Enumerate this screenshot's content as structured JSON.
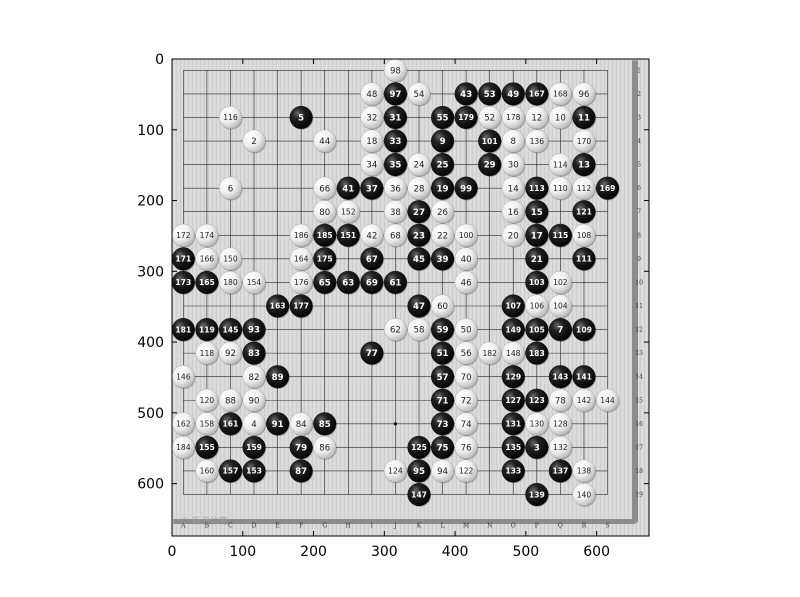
{
  "plot": {
    "xticks": [
      "0",
      "100",
      "200",
      "300",
      "400",
      "500",
      "600"
    ],
    "yticks": [
      "0",
      "100",
      "200",
      "300",
      "400",
      "500",
      "600"
    ],
    "xlim": [
      0,
      674
    ],
    "ylim": [
      674,
      0
    ]
  },
  "board": {
    "size": 19,
    "col_letters": [
      "A",
      "B",
      "C",
      "D",
      "E",
      "F",
      "G",
      "H",
      "I",
      "J",
      "K",
      "L",
      "M",
      "N",
      "O",
      "P",
      "Q",
      "R",
      "S"
    ],
    "row_numbers": [
      "1",
      "2",
      "3",
      "4",
      "5",
      "6",
      "7",
      "8",
      "9",
      "10",
      "11",
      "12",
      "13",
      "14",
      "15",
      "16",
      "17",
      "18",
      "19"
    ],
    "watermark": "© 新浪体育",
    "colors": {
      "board": "#d6d6d6",
      "black_stone": "#141414",
      "white_stone": "#f2f2f2"
    }
  },
  "stones": [
    {
      "n": "98",
      "c": "w",
      "col": 10,
      "row": 1
    },
    {
      "n": "48",
      "c": "w",
      "col": 9,
      "row": 2
    },
    {
      "n": "97",
      "c": "b",
      "col": 10,
      "row": 2
    },
    {
      "n": "54",
      "c": "w",
      "col": 11,
      "row": 2
    },
    {
      "n": "43",
      "c": "b",
      "col": 13,
      "row": 2
    },
    {
      "n": "53",
      "c": "b",
      "col": 14,
      "row": 2
    },
    {
      "n": "49",
      "c": "b",
      "col": 15,
      "row": 2
    },
    {
      "n": "167",
      "c": "b",
      "col": 16,
      "row": 2
    },
    {
      "n": "168",
      "c": "w",
      "col": 17,
      "row": 2
    },
    {
      "n": "96",
      "c": "w",
      "col": 18,
      "row": 2
    },
    {
      "n": "116",
      "c": "w",
      "col": 3,
      "row": 3
    },
    {
      "n": "5",
      "c": "b",
      "col": 6,
      "row": 3
    },
    {
      "n": "32",
      "c": "w",
      "col": 9,
      "row": 3
    },
    {
      "n": "31",
      "c": "b",
      "col": 10,
      "row": 3
    },
    {
      "n": "55",
      "c": "b",
      "col": 12,
      "row": 3
    },
    {
      "n": "179",
      "c": "b",
      "col": 13,
      "row": 3
    },
    {
      "n": "52",
      "c": "w",
      "col": 14,
      "row": 3
    },
    {
      "n": "178",
      "c": "w",
      "col": 15,
      "row": 3
    },
    {
      "n": "12",
      "c": "w",
      "col": 16,
      "row": 3
    },
    {
      "n": "10",
      "c": "w",
      "col": 17,
      "row": 3
    },
    {
      "n": "11",
      "c": "b",
      "col": 18,
      "row": 3
    },
    {
      "n": "2",
      "c": "w",
      "col": 4,
      "row": 4
    },
    {
      "n": "44",
      "c": "w",
      "col": 7,
      "row": 4
    },
    {
      "n": "18",
      "c": "w",
      "col": 9,
      "row": 4
    },
    {
      "n": "33",
      "c": "b",
      "col": 10,
      "row": 4
    },
    {
      "n": "9",
      "c": "b",
      "col": 12,
      "row": 4
    },
    {
      "n": "101",
      "c": "b",
      "col": 14,
      "row": 4
    },
    {
      "n": "8",
      "c": "w",
      "col": 15,
      "row": 4
    },
    {
      "n": "136",
      "c": "w",
      "col": 16,
      "row": 4
    },
    {
      "n": "170",
      "c": "w",
      "col": 18,
      "row": 4
    },
    {
      "n": "34",
      "c": "w",
      "col": 9,
      "row": 5
    },
    {
      "n": "35",
      "c": "b",
      "col": 10,
      "row": 5
    },
    {
      "n": "24",
      "c": "w",
      "col": 11,
      "row": 5
    },
    {
      "n": "25",
      "c": "b",
      "col": 12,
      "row": 5
    },
    {
      "n": "29",
      "c": "b",
      "col": 14,
      "row": 5
    },
    {
      "n": "30",
      "c": "w",
      "col": 15,
      "row": 5
    },
    {
      "n": "114",
      "c": "w",
      "col": 17,
      "row": 5
    },
    {
      "n": "13",
      "c": "b",
      "col": 18,
      "row": 5
    },
    {
      "n": "6",
      "c": "w",
      "col": 3,
      "row": 6
    },
    {
      "n": "66",
      "c": "w",
      "col": 7,
      "row": 6
    },
    {
      "n": "41",
      "c": "b",
      "col": 8,
      "row": 6
    },
    {
      "n": "37",
      "c": "b",
      "col": 9,
      "row": 6
    },
    {
      "n": "36",
      "c": "w",
      "col": 10,
      "row": 6
    },
    {
      "n": "28",
      "c": "w",
      "col": 11,
      "row": 6
    },
    {
      "n": "19",
      "c": "b",
      "col": 12,
      "row": 6
    },
    {
      "n": "99",
      "c": "b",
      "col": 13,
      "row": 6
    },
    {
      "n": "14",
      "c": "w",
      "col": 15,
      "row": 6
    },
    {
      "n": "113",
      "c": "b",
      "col": 16,
      "row": 6
    },
    {
      "n": "110",
      "c": "w",
      "col": 17,
      "row": 6
    },
    {
      "n": "112",
      "c": "w",
      "col": 18,
      "row": 6
    },
    {
      "n": "169",
      "c": "b",
      "col": 19,
      "row": 6
    },
    {
      "n": "80",
      "c": "w",
      "col": 7,
      "row": 7
    },
    {
      "n": "152",
      "c": "w",
      "col": 8,
      "row": 7
    },
    {
      "n": "38",
      "c": "w",
      "col": 10,
      "row": 7
    },
    {
      "n": "27",
      "c": "b",
      "col": 11,
      "row": 7
    },
    {
      "n": "26",
      "c": "w",
      "col": 12,
      "row": 7
    },
    {
      "n": "16",
      "c": "w",
      "col": 15,
      "row": 7
    },
    {
      "n": "15",
      "c": "b",
      "col": 16,
      "row": 7
    },
    {
      "n": "121",
      "c": "b",
      "col": 18,
      "row": 7
    },
    {
      "n": "172",
      "c": "w",
      "col": 1,
      "row": 8
    },
    {
      "n": "174",
      "c": "w",
      "col": 2,
      "row": 8
    },
    {
      "n": "186",
      "c": "w",
      "col": 6,
      "row": 8
    },
    {
      "n": "185",
      "c": "b",
      "col": 7,
      "row": 8
    },
    {
      "n": "151",
      "c": "b",
      "col": 8,
      "row": 8
    },
    {
      "n": "42",
      "c": "w",
      "col": 9,
      "row": 8
    },
    {
      "n": "68",
      "c": "w",
      "col": 10,
      "row": 8
    },
    {
      "n": "23",
      "c": "b",
      "col": 11,
      "row": 8
    },
    {
      "n": "22",
      "c": "w",
      "col": 12,
      "row": 8
    },
    {
      "n": "100",
      "c": "w",
      "col": 13,
      "row": 8
    },
    {
      "n": "20",
      "c": "w",
      "col": 15,
      "row": 8
    },
    {
      "n": "17",
      "c": "b",
      "col": 16,
      "row": 8
    },
    {
      "n": "115",
      "c": "b",
      "col": 17,
      "row": 8
    },
    {
      "n": "108",
      "c": "w",
      "col": 18,
      "row": 8
    },
    {
      "n": "171",
      "c": "b",
      "col": 1,
      "row": 9
    },
    {
      "n": "166",
      "c": "w",
      "col": 2,
      "row": 9
    },
    {
      "n": "150",
      "c": "w",
      "col": 3,
      "row": 9
    },
    {
      "n": "164",
      "c": "w",
      "col": 6,
      "row": 9
    },
    {
      "n": "175",
      "c": "b",
      "col": 7,
      "row": 9
    },
    {
      "n": "67",
      "c": "b",
      "col": 9,
      "row": 9
    },
    {
      "n": "45",
      "c": "b",
      "col": 11,
      "row": 9
    },
    {
      "n": "39",
      "c": "b",
      "col": 12,
      "row": 9
    },
    {
      "n": "40",
      "c": "w",
      "col": 13,
      "row": 9
    },
    {
      "n": "21",
      "c": "b",
      "col": 16,
      "row": 9
    },
    {
      "n": "111",
      "c": "b",
      "col": 18,
      "row": 9
    },
    {
      "n": "173",
      "c": "b",
      "col": 1,
      "row": 10
    },
    {
      "n": "165",
      "c": "b",
      "col": 2,
      "row": 10
    },
    {
      "n": "180",
      "c": "w",
      "col": 3,
      "row": 10
    },
    {
      "n": "154",
      "c": "w",
      "col": 4,
      "row": 10
    },
    {
      "n": "176",
      "c": "w",
      "col": 6,
      "row": 10
    },
    {
      "n": "65",
      "c": "b",
      "col": 7,
      "row": 10
    },
    {
      "n": "63",
      "c": "b",
      "col": 8,
      "row": 10
    },
    {
      "n": "69",
      "c": "b",
      "col": 9,
      "row": 10
    },
    {
      "n": "61",
      "c": "b",
      "col": 10,
      "row": 10
    },
    {
      "n": "46",
      "c": "w",
      "col": 13,
      "row": 10
    },
    {
      "n": "103",
      "c": "b",
      "col": 16,
      "row": 10
    },
    {
      "n": "102",
      "c": "w",
      "col": 17,
      "row": 10
    },
    {
      "n": "163",
      "c": "b",
      "col": 5,
      "row": 11
    },
    {
      "n": "177",
      "c": "b",
      "col": 6,
      "row": 11
    },
    {
      "n": "47",
      "c": "b",
      "col": 11,
      "row": 11
    },
    {
      "n": "60",
      "c": "w",
      "col": 12,
      "row": 11
    },
    {
      "n": "107",
      "c": "b",
      "col": 15,
      "row": 11
    },
    {
      "n": "106",
      "c": "w",
      "col": 16,
      "row": 11
    },
    {
      "n": "104",
      "c": "w",
      "col": 17,
      "row": 11
    },
    {
      "n": "181",
      "c": "b",
      "col": 1,
      "row": 12
    },
    {
      "n": "119",
      "c": "b",
      "col": 2,
      "row": 12
    },
    {
      "n": "145",
      "c": "b",
      "col": 3,
      "row": 12
    },
    {
      "n": "93",
      "c": "b",
      "col": 4,
      "row": 12
    },
    {
      "n": "62",
      "c": "w",
      "col": 10,
      "row": 12
    },
    {
      "n": "58",
      "c": "w",
      "col": 11,
      "row": 12
    },
    {
      "n": "59",
      "c": "b",
      "col": 12,
      "row": 12
    },
    {
      "n": "50",
      "c": "w",
      "col": 13,
      "row": 12
    },
    {
      "n": "149",
      "c": "b",
      "col": 15,
      "row": 12
    },
    {
      "n": "105",
      "c": "b",
      "col": 16,
      "row": 12
    },
    {
      "n": "7",
      "c": "b",
      "col": 17,
      "row": 12
    },
    {
      "n": "109",
      "c": "b",
      "col": 18,
      "row": 12
    },
    {
      "n": "118",
      "c": "w",
      "col": 2,
      "row": 13
    },
    {
      "n": "92",
      "c": "w",
      "col": 3,
      "row": 13
    },
    {
      "n": "83",
      "c": "b",
      "col": 4,
      "row": 13
    },
    {
      "n": "77",
      "c": "b",
      "col": 9,
      "row": 13
    },
    {
      "n": "51",
      "c": "b",
      "col": 12,
      "row": 13
    },
    {
      "n": "56",
      "c": "w",
      "col": 13,
      "row": 13
    },
    {
      "n": "182",
      "c": "w",
      "col": 14,
      "row": 13
    },
    {
      "n": "148",
      "c": "w",
      "col": 15,
      "row": 13
    },
    {
      "n": "183",
      "c": "b",
      "col": 16,
      "row": 13
    },
    {
      "n": "146",
      "c": "w",
      "col": 1,
      "row": 14
    },
    {
      "n": "82",
      "c": "w",
      "col": 4,
      "row": 14
    },
    {
      "n": "89",
      "c": "b",
      "col": 5,
      "row": 14
    },
    {
      "n": "57",
      "c": "b",
      "col": 12,
      "row": 14
    },
    {
      "n": "70",
      "c": "w",
      "col": 13,
      "row": 14
    },
    {
      "n": "129",
      "c": "b",
      "col": 15,
      "row": 14
    },
    {
      "n": "143",
      "c": "b",
      "col": 17,
      "row": 14
    },
    {
      "n": "141",
      "c": "b",
      "col": 18,
      "row": 14
    },
    {
      "n": "120",
      "c": "w",
      "col": 2,
      "row": 15
    },
    {
      "n": "88",
      "c": "w",
      "col": 3,
      "row": 15
    },
    {
      "n": "90",
      "c": "w",
      "col": 4,
      "row": 15
    },
    {
      "n": "71",
      "c": "b",
      "col": 12,
      "row": 15
    },
    {
      "n": "72",
      "c": "w",
      "col": 13,
      "row": 15
    },
    {
      "n": "127",
      "c": "b",
      "col": 15,
      "row": 15
    },
    {
      "n": "123",
      "c": "b",
      "col": 16,
      "row": 15
    },
    {
      "n": "78",
      "c": "w",
      "col": 17,
      "row": 15
    },
    {
      "n": "142",
      "c": "w",
      "col": 18,
      "row": 15
    },
    {
      "n": "144",
      "c": "w",
      "col": 19,
      "row": 15
    },
    {
      "n": "162",
      "c": "w",
      "col": 1,
      "row": 16
    },
    {
      "n": "158",
      "c": "w",
      "col": 2,
      "row": 16
    },
    {
      "n": "161",
      "c": "b",
      "col": 3,
      "row": 16
    },
    {
      "n": "4",
      "c": "w",
      "col": 4,
      "row": 16
    },
    {
      "n": "91",
      "c": "b",
      "col": 5,
      "row": 16
    },
    {
      "n": "84",
      "c": "w",
      "col": 6,
      "row": 16
    },
    {
      "n": "85",
      "c": "b",
      "col": 7,
      "row": 16
    },
    {
      "n": "73",
      "c": "b",
      "col": 12,
      "row": 16
    },
    {
      "n": "74",
      "c": "w",
      "col": 13,
      "row": 16
    },
    {
      "n": "131",
      "c": "b",
      "col": 15,
      "row": 16
    },
    {
      "n": "130",
      "c": "w",
      "col": 16,
      "row": 16
    },
    {
      "n": "128",
      "c": "w",
      "col": 17,
      "row": 16
    },
    {
      "n": "184",
      "c": "w",
      "col": 1,
      "row": 17
    },
    {
      "n": "155",
      "c": "b",
      "col": 2,
      "row": 17
    },
    {
      "n": "159",
      "c": "b",
      "col": 4,
      "row": 17
    },
    {
      "n": "79",
      "c": "b",
      "col": 6,
      "row": 17
    },
    {
      "n": "86",
      "c": "w",
      "col": 7,
      "row": 17
    },
    {
      "n": "125",
      "c": "b",
      "col": 11,
      "row": 17
    },
    {
      "n": "75",
      "c": "b",
      "col": 12,
      "row": 17
    },
    {
      "n": "76",
      "c": "w",
      "col": 13,
      "row": 17
    },
    {
      "n": "135",
      "c": "b",
      "col": 15,
      "row": 17
    },
    {
      "n": "3",
      "c": "b",
      "col": 16,
      "row": 17
    },
    {
      "n": "132",
      "c": "w",
      "col": 17,
      "row": 17
    },
    {
      "n": "160",
      "c": "w",
      "col": 2,
      "row": 18
    },
    {
      "n": "157",
      "c": "b",
      "col": 3,
      "row": 18
    },
    {
      "n": "153",
      "c": "b",
      "col": 4,
      "row": 18
    },
    {
      "n": "87",
      "c": "b",
      "col": 6,
      "row": 18
    },
    {
      "n": "124",
      "c": "w",
      "col": 10,
      "row": 18
    },
    {
      "n": "95",
      "c": "b",
      "col": 11,
      "row": 18
    },
    {
      "n": "94",
      "c": "w",
      "col": 12,
      "row": 18
    },
    {
      "n": "122",
      "c": "w",
      "col": 13,
      "row": 18
    },
    {
      "n": "133",
      "c": "b",
      "col": 15,
      "row": 18
    },
    {
      "n": "137",
      "c": "b",
      "col": 17,
      "row": 18
    },
    {
      "n": "138",
      "c": "w",
      "col": 18,
      "row": 18
    },
    {
      "n": "147",
      "c": "b",
      "col": 11,
      "row": 19
    },
    {
      "n": "139",
      "c": "b",
      "col": 16,
      "row": 19
    },
    {
      "n": "140",
      "c": "w",
      "col": 18,
      "row": 19
    }
  ]
}
